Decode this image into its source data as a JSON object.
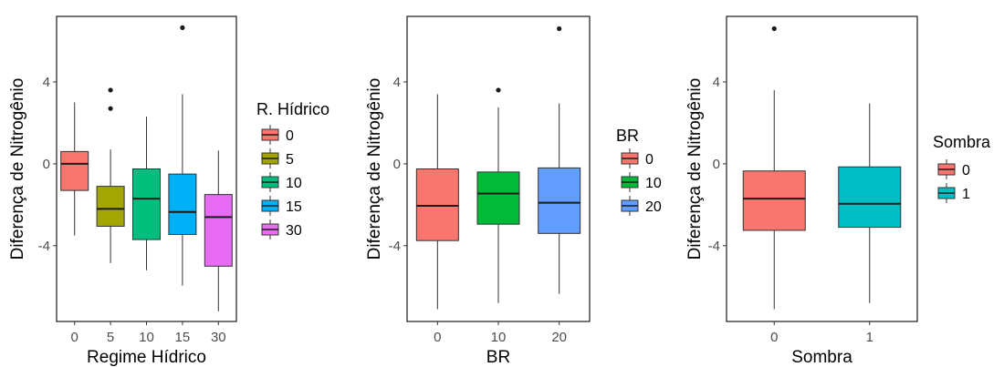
{
  "chart_data": [
    {
      "type": "box",
      "xlabel": "Regime Hídrico",
      "ylabel": "Diferença de Nitrogênio",
      "ylim": [
        -7.7,
        7.2
      ],
      "yticks": [
        -4,
        0,
        4
      ],
      "categories": [
        "0",
        "5",
        "10",
        "15",
        "30"
      ],
      "legend": {
        "title": "R. Hídrico",
        "placement": "right",
        "labels": [
          "0",
          "5",
          "10",
          "15",
          "30"
        ]
      },
      "colors": [
        "#F8766D",
        "#A3A500",
        "#00BF7D",
        "#00B0F6",
        "#E76BF3"
      ],
      "grid": false,
      "boxes": [
        {
          "q1": -1.3,
          "median": 0.0,
          "q3": 0.6,
          "whisker_low": -3.5,
          "whisker_high": 3.0,
          "outliers": []
        },
        {
          "q1": -3.05,
          "median": -2.2,
          "q3": -1.1,
          "whisker_low": -4.85,
          "whisker_high": 0.7,
          "outliers": [
            2.7,
            3.6
          ]
        },
        {
          "q1": -3.7,
          "median": -1.7,
          "q3": -0.25,
          "whisker_low": -5.2,
          "whisker_high": 2.3,
          "outliers": []
        },
        {
          "q1": -3.45,
          "median": -2.35,
          "q3": -0.5,
          "whisker_low": -5.95,
          "whisker_high": 3.4,
          "outliers": [
            6.65
          ]
        },
        {
          "q1": -5.0,
          "median": -2.6,
          "q3": -1.5,
          "whisker_low": -7.2,
          "whisker_high": 0.65,
          "outliers": []
        }
      ]
    },
    {
      "type": "box",
      "xlabel": "BR",
      "ylabel": "Diferença de Nitrogênio",
      "ylim": [
        -7.7,
        7.2
      ],
      "yticks": [
        -4,
        0,
        4
      ],
      "categories": [
        "0",
        "10",
        "20"
      ],
      "legend": {
        "title": "BR",
        "placement": "right",
        "labels": [
          "0",
          "10",
          "20"
        ]
      },
      "colors": [
        "#F8766D",
        "#00BA38",
        "#619CFF"
      ],
      "grid": false,
      "boxes": [
        {
          "q1": -3.75,
          "median": -2.05,
          "q3": -0.25,
          "whisker_low": -7.1,
          "whisker_high": 3.4,
          "outliers": []
        },
        {
          "q1": -2.95,
          "median": -1.45,
          "q3": -0.4,
          "whisker_low": -6.8,
          "whisker_high": 2.75,
          "outliers": [
            3.6
          ]
        },
        {
          "q1": -3.4,
          "median": -1.9,
          "q3": -0.2,
          "whisker_low": -6.35,
          "whisker_high": 2.95,
          "outliers": [
            6.6
          ]
        }
      ]
    },
    {
      "type": "box",
      "xlabel": "Sombra",
      "ylabel": "Diferença de Nitrogênio",
      "ylim": [
        -7.7,
        7.2
      ],
      "yticks": [
        -4,
        0,
        4
      ],
      "categories": [
        "0",
        "1"
      ],
      "legend": {
        "title": "Sombra",
        "placement": "right",
        "labels": [
          "0",
          "1"
        ]
      },
      "colors": [
        "#F8766D",
        "#00BFC4"
      ],
      "grid": false,
      "boxes": [
        {
          "q1": -3.25,
          "median": -1.7,
          "q3": -0.35,
          "whisker_low": -7.1,
          "whisker_high": 3.6,
          "outliers": [
            6.6
          ]
        },
        {
          "q1": -3.1,
          "median": -1.95,
          "q3": -0.15,
          "whisker_low": -6.8,
          "whisker_high": 2.95,
          "outliers": []
        }
      ]
    }
  ]
}
